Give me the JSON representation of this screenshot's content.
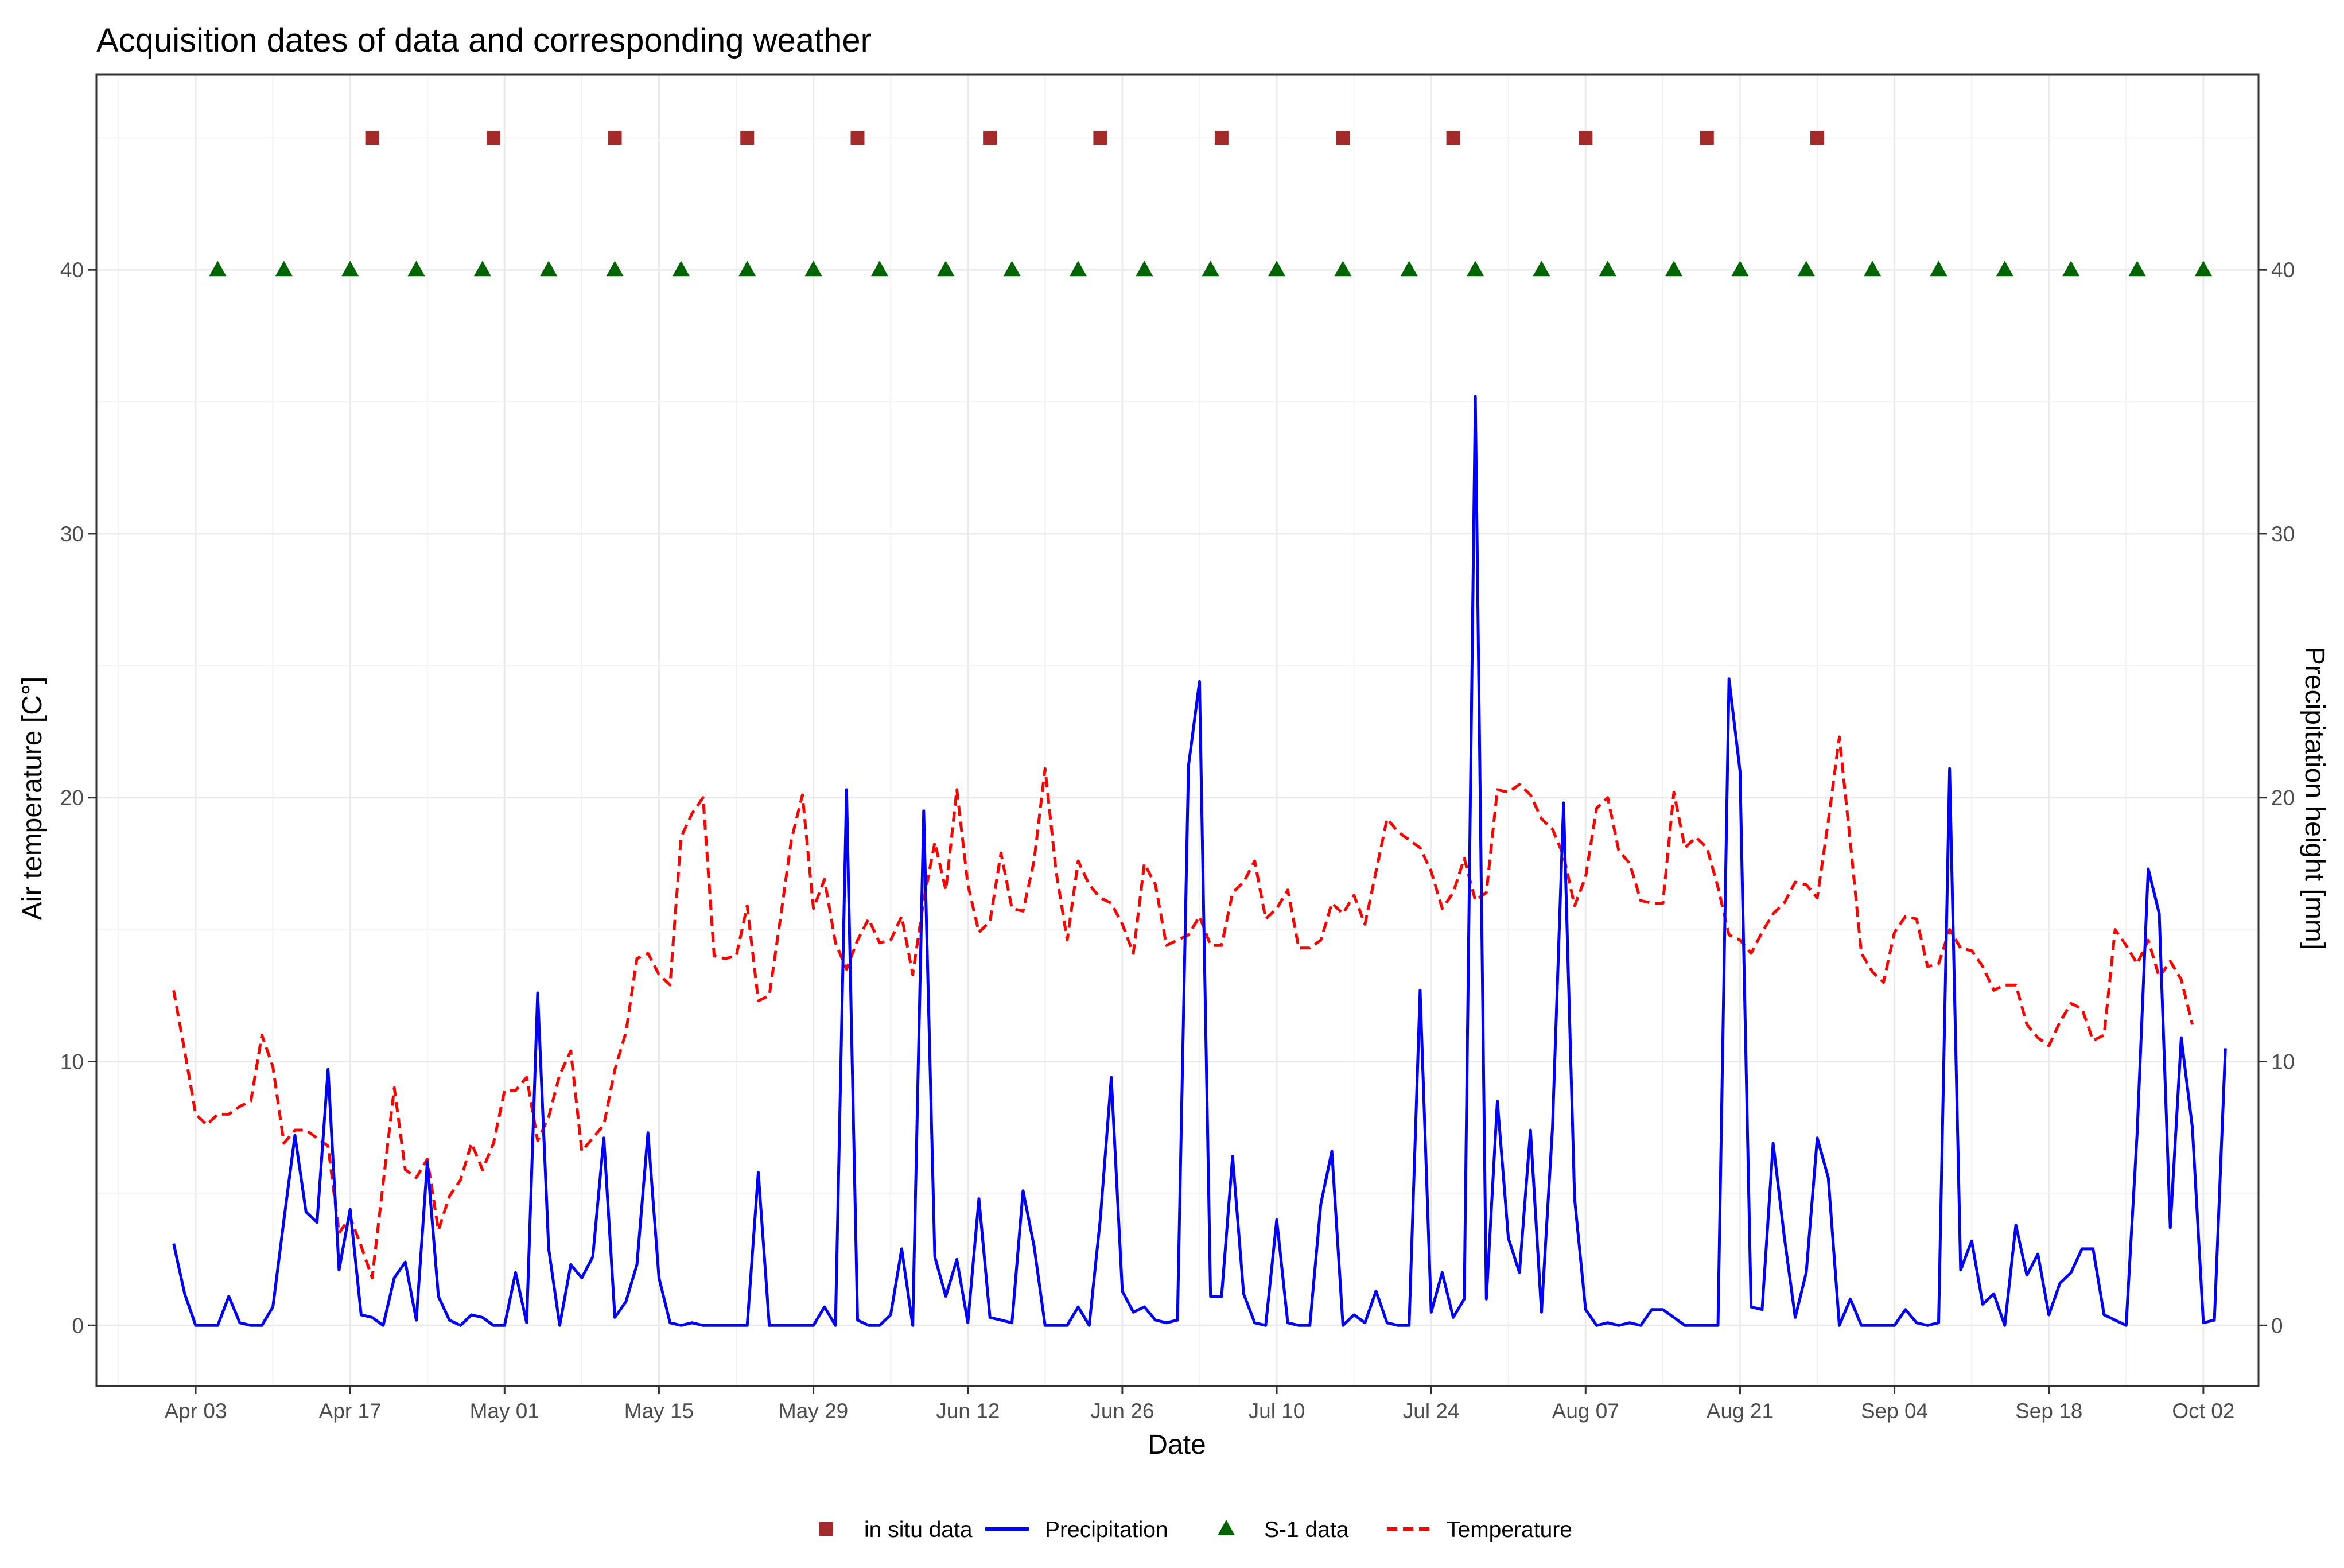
{
  "chart_data": {
    "type": "line",
    "title": "Acquisition dates of data and corresponding weather",
    "xlabel": "Date",
    "ylabel": "Air temperature [C°]",
    "y2label": "Precipitation height [mm]",
    "ylim": [
      -2.3,
      47.4
    ],
    "y2lim": [
      -2.3,
      47.4
    ],
    "xlim": [
      "2018-03-25",
      "2018-10-07"
    ],
    "x_ticks": [
      "Apr 03",
      "Apr 17",
      "May 01",
      "May 15",
      "May 29",
      "Jun 12",
      "Jun 26",
      "Jul 10",
      "Jul 24",
      "Aug 07",
      "Aug 21",
      "Sep 04",
      "Sep 18",
      "Oct 02"
    ],
    "y_ticks": [
      "0",
      "10",
      "20",
      "30",
      "40"
    ],
    "y2_ticks": [
      "0",
      "10",
      "20",
      "30",
      "40"
    ],
    "grid": true,
    "legend_position": "bottom",
    "colors": {
      "precipitation": "#0000ff",
      "temperature": "#ff0000",
      "in_situ": "#a52a2a",
      "s1": "#006400"
    },
    "series": [
      {
        "name": "Temperature",
        "style": "dashed",
        "start_date": "2018-04-01",
        "values": [
          12.7,
          10.4,
          8.0,
          7.6,
          8.0,
          8.0,
          8.3,
          8.5,
          11.0,
          9.8,
          6.9,
          7.4,
          7.4,
          7.1,
          6.8,
          3.5,
          4.1,
          3.0,
          1.8,
          5.4,
          9.0,
          5.9,
          5.6,
          6.3,
          3.6,
          4.9,
          5.5,
          6.9,
          5.9,
          6.9,
          8.9,
          8.9,
          9.4,
          7.0,
          7.9,
          9.5,
          10.4,
          6.6,
          7.1,
          7.6,
          9.7,
          11.1,
          13.9,
          14.1,
          13.3,
          12.9,
          18.5,
          19.4,
          20.0,
          14.0,
          13.9,
          14.0,
          15.9,
          12.3,
          12.5,
          15.4,
          18.4,
          20.1,
          15.8,
          16.9,
          14.5,
          13.5,
          14.6,
          15.4,
          14.5,
          14.6,
          15.5,
          13.3,
          16.1,
          18.3,
          16.5,
          20.3,
          16.7,
          14.9,
          15.3,
          17.9,
          15.8,
          15.7,
          17.6,
          21.1,
          17.2,
          14.6,
          17.6,
          16.7,
          16.2,
          16.0,
          15.2,
          14.1,
          17.5,
          16.7,
          14.4,
          14.6,
          14.8,
          15.5,
          14.4,
          14.4,
          16.4,
          16.8,
          17.6,
          15.4,
          15.8,
          16.5,
          14.3,
          14.3,
          14.6,
          16.0,
          15.6,
          16.3,
          15.2,
          17.2,
          19.2,
          18.7,
          18.4,
          18.1,
          17.2,
          15.8,
          16.4,
          17.7,
          16.1,
          16.4,
          20.3,
          20.2,
          20.5,
          20.1,
          19.2,
          18.8,
          17.8,
          15.9,
          17.0,
          19.6,
          20.0,
          18.0,
          17.5,
          16.1,
          16.0,
          16.0,
          20.2,
          18.1,
          18.5,
          18.1,
          16.6,
          14.8,
          14.6,
          14.1,
          14.9,
          15.6,
          16.0,
          16.8,
          16.7,
          16.2,
          19.1,
          22.3,
          18.3,
          14.1,
          13.4,
          13.0,
          14.9,
          15.5,
          15.4,
          13.6,
          13.7,
          15.0,
          14.3,
          14.2,
          13.6,
          12.7,
          12.9,
          12.9,
          11.4,
          10.9,
          10.6,
          11.5,
          12.2,
          12.0,
          10.8,
          11.0,
          15.0,
          14.4,
          13.7,
          14.6,
          13.2,
          13.8,
          13.1,
          11.4
        ]
      },
      {
        "name": "Precipitation",
        "style": "solid",
        "start_date": "2018-04-01",
        "values": [
          3.1,
          1.2,
          0,
          0,
          0,
          1.1,
          0.1,
          0,
          0,
          0.7,
          4.0,
          7.2,
          4.3,
          3.9,
          9.7,
          2.1,
          4.4,
          0.4,
          0.3,
          0,
          1.8,
          2.4,
          0.2,
          6.2,
          1.1,
          0.2,
          0,
          0.4,
          0.3,
          0,
          0,
          2.0,
          0.1,
          12.6,
          2.9,
          0,
          2.3,
          1.8,
          2.6,
          7.1,
          0.3,
          0.9,
          2.3,
          7.3,
          1.8,
          0.1,
          0,
          0.1,
          0,
          0,
          0,
          0,
          0,
          5.8,
          0,
          0,
          0,
          0,
          0,
          0.7,
          0,
          20.3,
          0.2,
          0,
          0,
          0.4,
          2.9,
          0,
          19.5,
          2.6,
          1.1,
          2.5,
          0.1,
          4.8,
          0.3,
          0.2,
          0.1,
          5.1,
          3.0,
          0,
          0,
          0,
          0.7,
          0,
          4.0,
          9.4,
          1.3,
          0.5,
          0.7,
          0.2,
          0.1,
          0.2,
          21.2,
          24.4,
          1.1,
          1.1,
          6.4,
          1.2,
          0.1,
          0,
          4.0,
          0.1,
          0,
          0,
          4.6,
          6.6,
          0,
          0.4,
          0.1,
          1.3,
          0.1,
          0,
          0,
          12.7,
          0.5,
          2.0,
          0.3,
          1.0,
          35.2,
          1.0,
          8.5,
          3.3,
          2.0,
          7.4,
          0.5,
          7.5,
          19.8,
          4.8,
          0.6,
          0,
          0.1,
          0,
          0.1,
          0,
          0.6,
          0.6,
          0.3,
          0,
          0,
          0,
          0,
          24.5,
          21.0,
          0.7,
          0.6,
          6.9,
          3.4,
          0.3,
          2.0,
          7.1,
          5.6,
          0,
          1.0,
          0,
          0,
          0,
          0,
          0.6,
          0.1,
          0,
          0.1,
          21.1,
          2.1,
          3.2,
          0.8,
          1.2,
          0,
          3.8,
          1.9,
          2.7,
          0.4,
          1.6,
          2.0,
          2.9,
          2.9,
          0.4,
          0.2,
          0,
          7.3,
          17.3,
          15.6,
          3.7,
          10.9,
          7.5,
          0.1,
          0.2,
          10.5
        ]
      },
      {
        "name": "in situ data",
        "marker": "square",
        "y": 45,
        "dates": [
          "2018-04-19",
          "2018-04-30",
          "2018-05-11",
          "2018-05-23",
          "2018-06-02",
          "2018-06-14",
          "2018-06-24",
          "2018-07-05",
          "2018-07-16",
          "2018-07-26",
          "2018-08-07",
          "2018-08-18",
          "2018-08-28"
        ]
      },
      {
        "name": "S-1 data",
        "marker": "triangle",
        "y": 40,
        "dates": [
          "2018-04-05",
          "2018-04-11",
          "2018-04-17",
          "2018-04-23",
          "2018-04-29",
          "2018-05-05",
          "2018-05-11",
          "2018-05-17",
          "2018-05-23",
          "2018-05-29",
          "2018-06-04",
          "2018-06-10",
          "2018-06-16",
          "2018-06-22",
          "2018-06-28",
          "2018-07-04",
          "2018-07-10",
          "2018-07-16",
          "2018-07-22",
          "2018-07-28",
          "2018-08-03",
          "2018-08-09",
          "2018-08-15",
          "2018-08-21",
          "2018-08-27",
          "2018-09-02",
          "2018-09-08",
          "2018-09-14",
          "2018-09-20",
          "2018-09-26",
          "2018-10-02"
        ]
      }
    ],
    "legend": [
      "in situ data",
      "Precipitation",
      "S-1 data",
      "Temperature"
    ]
  }
}
